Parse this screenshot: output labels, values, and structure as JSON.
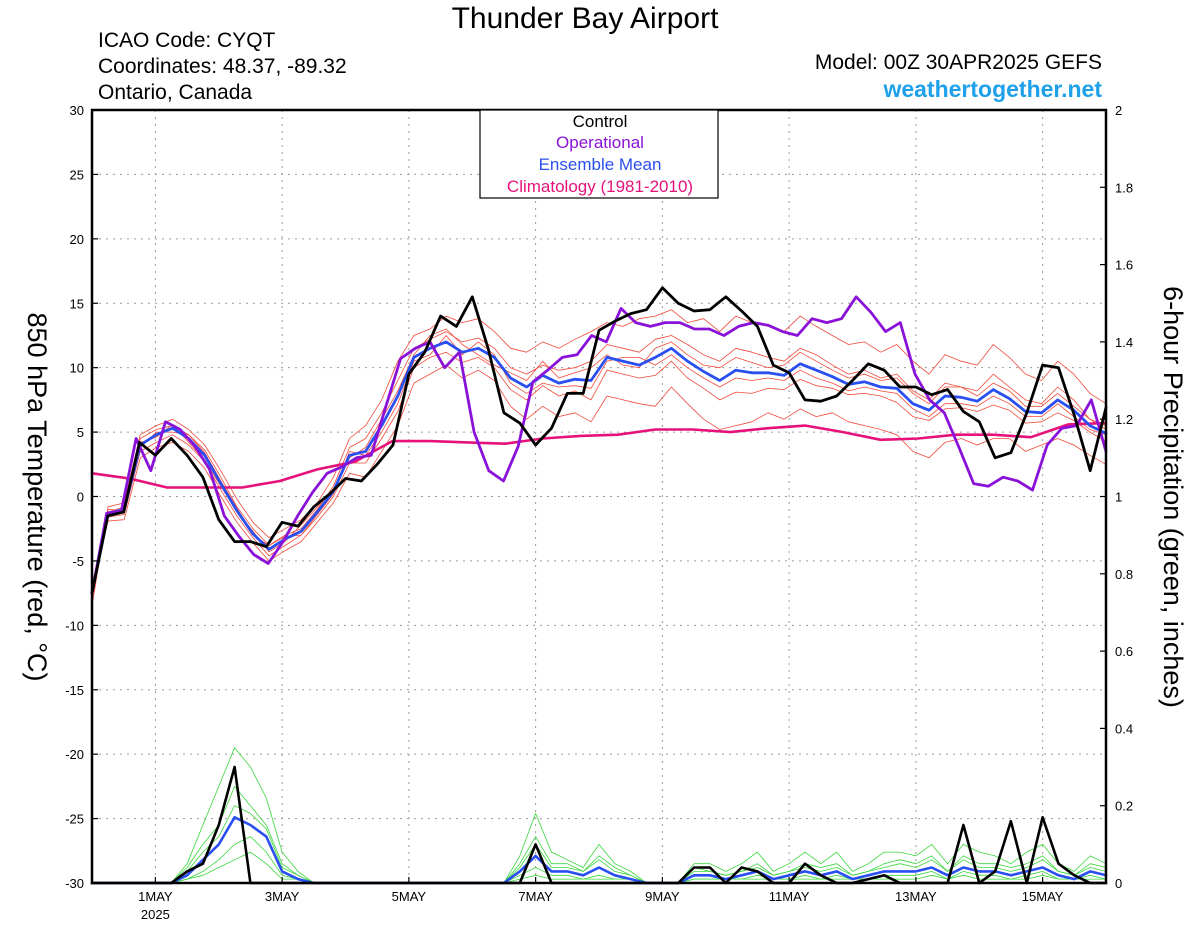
{
  "header": {
    "title": "Thunder Bay Airport",
    "icao": "ICAO Code: CYQT",
    "coords": "Coordinates: 48.37, -89.32",
    "region": "Ontario, Canada",
    "model": "Model: 00Z 30APR2025 GEFS",
    "site": "weathertogether.net"
  },
  "colors": {
    "members_temp": "#f04a3a",
    "members_precip": "#3ad63a",
    "control": "#000000",
    "operational": "#8a12d8",
    "ensemble_mean": "#2a4ff0",
    "climatology": "#e6127a",
    "site": "#1ea0ea"
  },
  "chart_data": {
    "type": "line",
    "ylabel": "850 hPa Temperature (red, °C)",
    "y2label": "6-hour Precipitation (green, inches)",
    "ylim": [
      -30,
      30
    ],
    "y2lim": [
      0,
      2
    ],
    "yticks": [
      30,
      25,
      20,
      15,
      10,
      5,
      0,
      -5,
      -10,
      -15,
      -20,
      -25,
      -30
    ],
    "y2ticks": [
      "2",
      "1.8",
      "1.6",
      "1.4",
      "1.2",
      "1",
      "0.8",
      "0.6",
      "0.4",
      "0.2",
      "0"
    ],
    "xlim_days": [
      0,
      16
    ],
    "xticks": [
      {
        "day": 1.0,
        "label": "1MAY",
        "sub": "2025"
      },
      {
        "day": 3.0,
        "label": "3MAY",
        "sub": ""
      },
      {
        "day": 5.0,
        "label": "5MAY",
        "sub": ""
      },
      {
        "day": 7.0,
        "label": "7MAY",
        "sub": ""
      },
      {
        "day": 9.0,
        "label": "9MAY",
        "sub": ""
      },
      {
        "day": 11.0,
        "label": "11MAY",
        "sub": ""
      },
      {
        "day": 13.0,
        "label": "13MAY",
        "sub": ""
      },
      {
        "day": 15.0,
        "label": "15MAY",
        "sub": ""
      }
    ],
    "grid": true,
    "legend_position": "top-center",
    "legend": [
      "Control",
      "Operational",
      "Ensemble Mean",
      "Climatology (1981-2010)"
    ],
    "control_temp": [
      -7.5,
      -1.5,
      -1.2,
      4.2,
      3.2,
      4.5,
      3.2,
      1.5,
      -1.8,
      -3.5,
      -3.5,
      -3.9,
      -2.0,
      -2.3,
      -0.8,
      0.2,
      1.4,
      1.2,
      2.5,
      4.0,
      9.5,
      11.2,
      14.0,
      13.2,
      15.5,
      11.5,
      6.5,
      5.7,
      4.0,
      5.3,
      8.0,
      8.0,
      12.9,
      13.6,
      14.2,
      14.5,
      16.2,
      15.0,
      14.4,
      14.5,
      15.5,
      14.4,
      13.2,
      10.2,
      9.6,
      7.5,
      7.4,
      7.8,
      9.0,
      10.3,
      9.8,
      8.5,
      8.5,
      7.9,
      8.3,
      6.6,
      5.8,
      3.0,
      3.4,
      6.5,
      10.2,
      10.0,
      6.3,
      2.0,
      6.9
    ],
    "operational_temp": [
      -7.5,
      -1.3,
      -1.1,
      4.5,
      2.0,
      5.8,
      5.2,
      3.9,
      2.1,
      -1.5,
      -3.1,
      -4.5,
      -5.2,
      -3.5,
      -1.5,
      0.3,
      1.8,
      2.3,
      3.0,
      3.2,
      7.0,
      10.7,
      11.5,
      12.0,
      10.0,
      11.2,
      5.0,
      2.0,
      1.2,
      3.9,
      8.9,
      9.8,
      10.8,
      11.0,
      12.5,
      12.0,
      14.6,
      13.5,
      13.2,
      13.5,
      13.5,
      13.0,
      13.0,
      12.5,
      13.2,
      13.5,
      13.3,
      12.8,
      12.5,
      13.8,
      13.5,
      13.8,
      15.5,
      14.3,
      12.8,
      13.5,
      9.5,
      7.5,
      6.5,
      3.8,
      1.0,
      0.8,
      1.5,
      1.2,
      0.5,
      4.0,
      5.3,
      5.5,
      7.5,
      3.5
    ],
    "mean_temp": [
      -7.5,
      -1.3,
      -1.0,
      4.0,
      4.8,
      5.3,
      4.5,
      3.2,
      1.0,
      -1.1,
      -2.9,
      -4.1,
      -3.3,
      -2.7,
      -1.2,
      0.4,
      3.2,
      3.5,
      5.5,
      7.8,
      10.8,
      11.5,
      12.0,
      11.2,
      11.5,
      10.8,
      9.2,
      8.5,
      9.4,
      8.8,
      9.1,
      9.0,
      10.8,
      10.5,
      10.2,
      10.8,
      11.5,
      10.5,
      9.7,
      9.0,
      9.8,
      9.6,
      9.6,
      9.4,
      10.3,
      9.8,
      9.3,
      8.7,
      8.9,
      8.5,
      8.4,
      7.2,
      6.7,
      7.8,
      7.7,
      7.4,
      8.3,
      7.6,
      6.6,
      6.5,
      7.5,
      6.7,
      5.5,
      4.9
    ],
    "climo_temp": [
      1.8,
      1.4,
      0.7,
      0.7,
      0.7,
      1.2,
      2.1,
      2.7,
      4.3,
      4.3,
      4.2,
      4.1,
      4.5,
      4.7,
      4.8,
      5.2,
      5.2,
      5.0,
      5.3,
      5.5,
      5.0,
      4.4,
      4.5,
      4.8,
      4.8,
      4.6,
      5.6,
      5.7
    ],
    "control_precip": [
      0,
      0,
      0,
      0,
      0,
      0,
      0.03,
      0.05,
      0.15,
      0.3,
      0.0,
      0,
      0,
      0,
      0,
      0,
      0,
      0,
      0,
      0,
      0,
      0,
      0,
      0,
      0,
      0,
      0,
      0,
      0.1,
      0.0,
      0,
      0,
      0,
      0,
      0,
      0,
      0,
      0,
      0.04,
      0.04,
      0,
      0.04,
      0.03,
      0,
      0,
      0.05,
      0.02,
      0,
      0,
      0.01,
      0.02,
      0,
      0,
      0,
      0,
      0.15,
      0,
      0.03,
      0.16,
      0.0,
      0.17,
      0.05,
      0.02,
      0,
      0
    ],
    "mean_precip": [
      0,
      0,
      0,
      0,
      0,
      0,
      0.02,
      0.06,
      0.1,
      0.17,
      0.15,
      0.12,
      0.03,
      0.01,
      0,
      0,
      0,
      0,
      0,
      0,
      0,
      0,
      0,
      0,
      0,
      0,
      0,
      0.03,
      0.07,
      0.03,
      0.03,
      0.02,
      0.04,
      0.02,
      0.01,
      0,
      0,
      0,
      0.02,
      0.02,
      0.01,
      0.02,
      0.03,
      0.01,
      0.02,
      0.03,
      0.02,
      0.03,
      0.01,
      0.02,
      0.03,
      0.03,
      0.03,
      0.04,
      0.02,
      0.04,
      0.03,
      0.03,
      0.02,
      0.03,
      0.04,
      0.02,
      0.01,
      0.03,
      0.02
    ],
    "members_temp": [
      [
        -8.0,
        -1.2,
        -0.8,
        4.5,
        5.2,
        5.5,
        4.8,
        3.6,
        1.5,
        -0.8,
        -2.5,
        -3.8,
        -3.0,
        -2.5,
        -1.0,
        0.8,
        3.8,
        4.5,
        6.5,
        9.0,
        11.5,
        12.2,
        12.8,
        12.0,
        12.3,
        11.5,
        10.0,
        9.5,
        10.2,
        9.8,
        10.0,
        10.5,
        11.8,
        11.5,
        11.2,
        12.2,
        12.5,
        11.8,
        11.0,
        10.5,
        11.5,
        11.2,
        10.8,
        10.5,
        11.5,
        11.0,
        10.2,
        9.5,
        9.8,
        9.2,
        9.5,
        8.2,
        7.5,
        8.8,
        8.5,
        8.2,
        9.5,
        8.5,
        7.5,
        7.2,
        8.5,
        7.5,
        6.0,
        5.5
      ],
      [
        -7.2,
        -1.6,
        -1.4,
        3.5,
        4.2,
        4.8,
        4.0,
        2.7,
        0.5,
        -1.5,
        -3.2,
        -4.6,
        -3.8,
        -3.0,
        -1.6,
        0.0,
        2.6,
        2.6,
        4.5,
        6.6,
        10.0,
        10.8,
        11.2,
        10.4,
        10.8,
        10.0,
        8.3,
        7.5,
        8.6,
        7.8,
        8.2,
        7.5,
        9.8,
        9.5,
        9.2,
        9.4,
        10.5,
        9.2,
        8.4,
        7.5,
        8.1,
        8.0,
        8.4,
        8.3,
        9.1,
        8.6,
        8.4,
        7.9,
        8.0,
        7.8,
        7.3,
        6.2,
        5.9,
        6.8,
        6.9,
        6.6,
        7.1,
        6.7,
        5.7,
        5.8,
        6.5,
        5.9,
        5.0,
        4.3
      ],
      [
        -8.5,
        -0.8,
        -0.5,
        4.8,
        5.5,
        6.0,
        5.2,
        4.0,
        2.0,
        -0.2,
        -2.0,
        -3.2,
        -2.5,
        -1.8,
        -0.5,
        1.5,
        4.5,
        5.5,
        7.5,
        10.5,
        12.5,
        13.0,
        14.0,
        13.5,
        13.8,
        12.8,
        11.5,
        11.2,
        12.0,
        11.5,
        12.2,
        12.8,
        13.5,
        13.2,
        13.8,
        14.0,
        14.5,
        13.5,
        13.8,
        12.8,
        14.0,
        13.5,
        13.2,
        12.8,
        14.0,
        13.2,
        12.5,
        11.8,
        12.0,
        11.2,
        11.8,
        10.5,
        9.5,
        11.0,
        10.5,
        10.2,
        11.8,
        10.8,
        9.5,
        9.0,
        10.5,
        9.5,
        8.0,
        7.2
      ],
      [
        -6.8,
        -1.9,
        -1.8,
        3.0,
        3.8,
        4.2,
        3.5,
        2.2,
        0.0,
        -2.0,
        -3.6,
        -5.0,
        -4.2,
        -3.5,
        -2.0,
        -0.5,
        1.8,
        1.5,
        3.5,
        5.5,
        8.8,
        9.5,
        10.2,
        9.2,
        9.8,
        9.0,
        7.0,
        6.0,
        7.0,
        6.2,
        6.5,
        5.8,
        7.8,
        7.5,
        7.2,
        7.0,
        8.5,
        7.2,
        6.0,
        5.2,
        5.5,
        5.8,
        6.5,
        6.0,
        6.8,
        6.2,
        6.5,
        5.8,
        5.5,
        5.2,
        4.8,
        3.5,
        3.0,
        4.2,
        4.5,
        4.0,
        4.5,
        4.5,
        3.5,
        4.0,
        4.5,
        4.0,
        3.2,
        2.5
      ],
      [
        -7.8,
        -1.0,
        -1.1,
        4.2,
        4.6,
        5.6,
        4.2,
        2.8,
        0.8,
        -1.2,
        -2.7,
        -4.3,
        -3.5,
        -2.2,
        -0.8,
        0.6,
        3.0,
        3.8,
        6.0,
        8.2,
        11.0,
        12.5,
        13.0,
        11.8,
        11.0,
        10.2,
        9.6,
        9.0,
        10.5,
        9.2,
        9.6,
        10.0,
        11.0,
        10.2,
        10.0,
        11.5,
        12.0,
        11.0,
        10.2,
        10.0,
        10.8,
        10.4,
        10.0,
        10.2,
        11.2,
        10.5,
        9.8,
        9.2,
        9.5,
        9.0,
        9.2,
        8.0,
        7.2,
        8.5,
        8.5,
        7.8,
        8.8,
        8.2,
        7.0,
        7.0,
        8.0,
        7.0,
        6.0,
        5.2
      ],
      [
        -7.0,
        -1.5,
        -0.9,
        3.8,
        5.0,
        5.0,
        4.8,
        3.4,
        1.2,
        -0.9,
        -3.0,
        -3.8,
        -3.1,
        -3.0,
        -1.4,
        0.2,
        3.5,
        3.2,
        5.0,
        7.2,
        10.5,
        11.0,
        12.5,
        11.0,
        12.0,
        11.0,
        8.8,
        8.0,
        8.8,
        8.5,
        8.6,
        8.4,
        10.5,
        10.8,
        10.8,
        10.2,
        11.0,
        10.0,
        9.2,
        8.5,
        9.2,
        9.0,
        9.2,
        9.0,
        9.8,
        9.2,
        8.8,
        8.2,
        8.5,
        8.2,
        8.0,
        6.8,
        6.2,
        7.2,
        7.2,
        7.0,
        7.8,
        7.2,
        6.2,
        6.2,
        7.2,
        6.2,
        5.2,
        4.8
      ]
    ],
    "members_precip": [
      [
        0,
        0,
        0,
        0,
        0,
        0,
        0.04,
        0.1,
        0.15,
        0.25,
        0.2,
        0.15,
        0.05,
        0.02,
        0,
        0,
        0,
        0,
        0,
        0,
        0,
        0,
        0,
        0,
        0,
        0,
        0,
        0.05,
        0.12,
        0.05,
        0.05,
        0.03,
        0.07,
        0.04,
        0.02,
        0,
        0,
        0,
        0.04,
        0.03,
        0.02,
        0.03,
        0.05,
        0.02,
        0.03,
        0.05,
        0.04,
        0.05,
        0.02,
        0.03,
        0.05,
        0.06,
        0.05,
        0.07,
        0.03,
        0.07,
        0.05,
        0.05,
        0.04,
        0.05,
        0.07,
        0.03,
        0.02,
        0.05,
        0.04
      ],
      [
        0,
        0,
        0,
        0,
        0,
        0,
        0.01,
        0.03,
        0.06,
        0.1,
        0.12,
        0.08,
        0.02,
        0.01,
        0,
        0,
        0,
        0,
        0,
        0,
        0,
        0,
        0,
        0,
        0,
        0,
        0,
        0.02,
        0.04,
        0.02,
        0.02,
        0.01,
        0.02,
        0.01,
        0.01,
        0,
        0,
        0,
        0.01,
        0.01,
        0.01,
        0.01,
        0.02,
        0.01,
        0.01,
        0.02,
        0.01,
        0.02,
        0.01,
        0.01,
        0.02,
        0.02,
        0.02,
        0.03,
        0.01,
        0.03,
        0.02,
        0.02,
        0.01,
        0.02,
        0.03,
        0.01,
        0.01,
        0.02,
        0.01
      ],
      [
        0,
        0,
        0,
        0,
        0,
        0,
        0.05,
        0.15,
        0.25,
        0.35,
        0.3,
        0.22,
        0.08,
        0.03,
        0,
        0,
        0,
        0,
        0,
        0,
        0,
        0,
        0,
        0,
        0,
        0,
        0,
        0.07,
        0.18,
        0.08,
        0.06,
        0.04,
        0.1,
        0.05,
        0.03,
        0,
        0,
        0,
        0.05,
        0.05,
        0.03,
        0.05,
        0.08,
        0.03,
        0.05,
        0.08,
        0.05,
        0.08,
        0.03,
        0.05,
        0.08,
        0.08,
        0.07,
        0.1,
        0.05,
        0.1,
        0.08,
        0.07,
        0.05,
        0.08,
        0.1,
        0.05,
        0.03,
        0.07,
        0.05
      ],
      [
        0,
        0,
        0,
        0,
        0,
        0,
        0.01,
        0.02,
        0.04,
        0.06,
        0.08,
        0.05,
        0.01,
        0.01,
        0,
        0,
        0,
        0,
        0,
        0,
        0,
        0,
        0,
        0,
        0,
        0,
        0,
        0.01,
        0.02,
        0.01,
        0.01,
        0.01,
        0.01,
        0.01,
        0.01,
        0,
        0,
        0,
        0.01,
        0.01,
        0.01,
        0.01,
        0.01,
        0.01,
        0.01,
        0.01,
        0.01,
        0.01,
        0.01,
        0.01,
        0.01,
        0.01,
        0.01,
        0.02,
        0.01,
        0.02,
        0.01,
        0.01,
        0.01,
        0.01,
        0.02,
        0.01,
        0.01,
        0.01,
        0.01
      ],
      [
        0,
        0,
        0,
        0,
        0,
        0,
        0.03,
        0.08,
        0.12,
        0.2,
        0.18,
        0.14,
        0.04,
        0.02,
        0,
        0,
        0,
        0,
        0,
        0,
        0,
        0,
        0,
        0,
        0,
        0,
        0,
        0.04,
        0.1,
        0.04,
        0.04,
        0.03,
        0.06,
        0.03,
        0.02,
        0,
        0,
        0,
        0.03,
        0.03,
        0.02,
        0.03,
        0.04,
        0.02,
        0.03,
        0.04,
        0.03,
        0.04,
        0.02,
        0.03,
        0.04,
        0.05,
        0.04,
        0.06,
        0.03,
        0.06,
        0.04,
        0.04,
        0.03,
        0.04,
        0.06,
        0.03,
        0.02,
        0.04,
        0.03
      ]
    ]
  }
}
